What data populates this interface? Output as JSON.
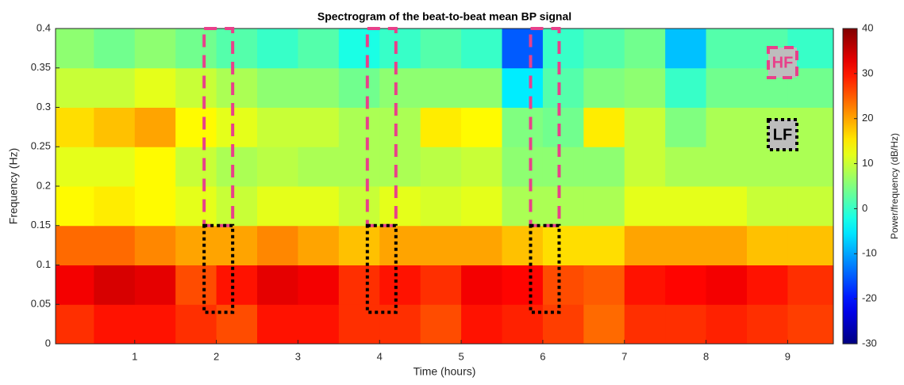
{
  "chart_data": {
    "type": "heatmap",
    "title": "Spectrogram of the beat-to-beat mean BP signal",
    "x_label": "Time (hours)",
    "y_label": "Frequency (Hz)",
    "colorbar_label": "Power/frequency (dB/Hz)",
    "colormap": "jet",
    "x": [
      0.25,
      0.75,
      1.25,
      1.75,
      2.25,
      2.75,
      3.25,
      3.75,
      4.25,
      4.75,
      5.25,
      5.75,
      6.25,
      6.75,
      7.25,
      7.75,
      8.25,
      8.75,
      9.25
    ],
    "y": [
      0.025,
      0.075,
      0.125,
      0.175,
      0.225,
      0.275,
      0.325,
      0.375
    ],
    "z": [
      [
        28,
        30,
        30,
        28,
        26,
        30,
        30,
        28,
        28,
        26,
        30,
        29,
        27,
        24,
        28,
        28,
        29,
        28,
        27
      ],
      [
        32,
        34,
        33,
        26,
        30,
        33,
        32,
        28,
        30,
        28,
        32,
        31,
        26,
        25,
        30,
        31,
        32,
        30,
        28
      ],
      [
        24,
        24,
        22,
        20,
        20,
        22,
        20,
        18,
        20,
        20,
        20,
        18,
        16,
        16,
        20,
        20,
        20,
        18,
        18
      ],
      [
        14,
        15,
        14,
        12,
        10,
        12,
        12,
        10,
        12,
        11,
        12,
        8,
        8,
        8,
        12,
        12,
        12,
        10,
        10
      ],
      [
        12,
        12,
        14,
        10,
        8,
        9,
        8,
        8,
        8,
        9,
        10,
        6,
        6,
        6,
        10,
        8,
        8,
        8,
        8
      ],
      [
        16,
        18,
        20,
        14,
        12,
        10,
        10,
        8,
        8,
        15,
        14,
        5,
        4,
        15,
        10,
        5,
        8,
        8,
        8
      ],
      [
        10,
        10,
        12,
        10,
        8,
        6,
        6,
        4,
        6,
        6,
        6,
        -5,
        2,
        5,
        6,
        0,
        4,
        4,
        4
      ],
      [
        6,
        4,
        6,
        4,
        2,
        0,
        2,
        -2,
        0,
        2,
        0,
        -15,
        0,
        2,
        4,
        -8,
        2,
        2,
        0
      ]
    ],
    "xlim": [
      0.03,
      9.56
    ],
    "ylim": [
      0,
      0.4
    ],
    "clim": [
      -30,
      40
    ],
    "xticks": [
      1,
      2,
      3,
      4,
      5,
      6,
      7,
      8,
      9
    ],
    "yticks": [
      0,
      0.05,
      0.1,
      0.15,
      0.2,
      0.25,
      0.3,
      0.35,
      0.4
    ],
    "cticks": [
      -30,
      -20,
      -10,
      0,
      10,
      20,
      30,
      40
    ],
    "windows": [
      [
        1.85,
        2.2
      ],
      [
        3.85,
        4.2
      ],
      [
        5.85,
        6.2
      ]
    ],
    "hf_band": [
      0.15,
      0.4
    ],
    "lf_band": [
      0.04,
      0.15
    ],
    "hf_label": "HF",
    "lf_label": "LF",
    "hf_color": "#e8408a",
    "lf_color": "#000000"
  }
}
